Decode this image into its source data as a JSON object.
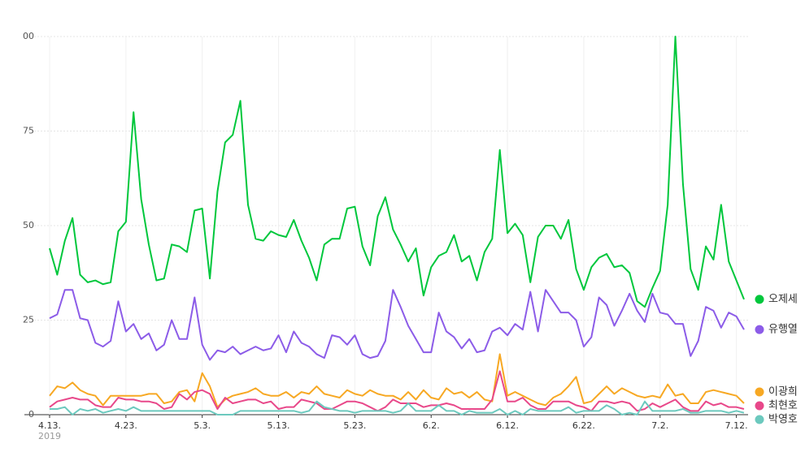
{
  "chart_data": {
    "type": "line",
    "categories": [
      "4.13.",
      null,
      null,
      null,
      null,
      null,
      null,
      null,
      null,
      null,
      "4.23.",
      null,
      null,
      null,
      null,
      null,
      null,
      null,
      null,
      null,
      "5.3.",
      null,
      null,
      null,
      null,
      null,
      null,
      null,
      null,
      null,
      "5.13.",
      null,
      null,
      null,
      null,
      null,
      null,
      null,
      null,
      null,
      "5.23.",
      null,
      null,
      null,
      null,
      null,
      null,
      null,
      null,
      null,
      "6.2.",
      null,
      null,
      null,
      null,
      null,
      null,
      null,
      null,
      null,
      "6.12.",
      null,
      null,
      null,
      null,
      null,
      null,
      null,
      null,
      null,
      "6.22.",
      null,
      null,
      null,
      null,
      null,
      null,
      null,
      null,
      null,
      "7.2.",
      null,
      null,
      null,
      null,
      null,
      null,
      null,
      null,
      null,
      "7.12.",
      null
    ],
    "x_sublabel": "2019",
    "ylim": [
      0,
      100
    ],
    "yticks": [
      0,
      25,
      50,
      75,
      {
        "value": 100,
        "label": "00"
      }
    ],
    "grid": true,
    "legend": "right",
    "series": [
      {
        "name": "오제세",
        "color": "#00c73c",
        "values": [
          44,
          37,
          46,
          52,
          37,
          35,
          35.5,
          34.5,
          35,
          48.5,
          51,
          80,
          57,
          45,
          35.5,
          36,
          45,
          44.5,
          43,
          54,
          54.5,
          36,
          59,
          72,
          74,
          83,
          55.5,
          46.5,
          46,
          48.5,
          47.5,
          47,
          51.5,
          46,
          41.5,
          35.5,
          45,
          46.5,
          46.5,
          54.5,
          55,
          44.5,
          39.5,
          52.5,
          57.5,
          49,
          45,
          40.5,
          44,
          31.5,
          39,
          42,
          43,
          47.5,
          40.5,
          42,
          35.5,
          43,
          46.5,
          70,
          48,
          50.5,
          47.5,
          35,
          47,
          50,
          50,
          46.5,
          51.5,
          38.5,
          33,
          39,
          41.5,
          42.5,
          39,
          39.5,
          37.5,
          30,
          28.5,
          33.5,
          38,
          55.5,
          100,
          61,
          38.5,
          33,
          44.5,
          41,
          55.5,
          40.5,
          35.5,
          30.5
        ]
      },
      {
        "name": "유행열",
        "color": "#8c5ce8",
        "values": [
          25.5,
          26.5,
          33,
          33,
          25.5,
          25,
          19,
          18,
          19.5,
          30,
          22,
          24,
          20,
          21.5,
          17,
          18.5,
          25,
          20,
          20,
          31,
          18.5,
          14.5,
          17,
          16.5,
          18,
          16,
          17,
          18,
          17,
          17.5,
          21,
          16.5,
          22,
          19,
          18,
          16,
          15,
          21,
          20.5,
          18.5,
          21,
          16,
          15,
          15.5,
          19.5,
          33,
          28.5,
          23.5,
          20,
          16.5,
          16.5,
          27,
          22,
          20.5,
          17.5,
          20,
          16.5,
          17,
          22,
          23,
          21,
          24,
          22.5,
          32.5,
          22,
          33,
          30,
          27,
          27,
          25,
          18,
          20.5,
          31,
          29,
          23.5,
          27.5,
          32,
          27.5,
          24.5,
          32,
          27,
          26.5,
          24,
          24,
          15.5,
          19.5,
          28.5,
          27.5,
          23,
          27,
          26,
          22.5
        ]
      },
      {
        "name": "이광희",
        "color": "#f7a823",
        "values": [
          5,
          7.5,
          7,
          8.5,
          6.5,
          5.5,
          5,
          2.5,
          5,
          5,
          5,
          5,
          5,
          5.5,
          5.5,
          3,
          3.5,
          6,
          6.5,
          3.5,
          11,
          7.5,
          2,
          4,
          5,
          5.5,
          6,
          7,
          5.5,
          5,
          5,
          6,
          4.5,
          6,
          5.5,
          7.5,
          5.5,
          5,
          4.5,
          6.5,
          5.5,
          5,
          6.5,
          5.5,
          5,
          5,
          4,
          6,
          4,
          6.5,
          4.5,
          4,
          7,
          5.5,
          6,
          4.5,
          6,
          4,
          3.5,
          16,
          5,
          6,
          5,
          4,
          3,
          2.5,
          4.5,
          5.5,
          7.5,
          10,
          3,
          3.5,
          5.5,
          7.5,
          5.5,
          7,
          6,
          5,
          4.5,
          5,
          4.5,
          8,
          5,
          5.5,
          3,
          3,
          6,
          6.5,
          6,
          5.5,
          5,
          3
        ]
      },
      {
        "name": "최현호",
        "color": "#e8488a",
        "values": [
          2,
          3.5,
          4,
          4.5,
          4,
          4,
          2.5,
          2,
          2,
          4.5,
          4,
          4,
          3.5,
          3.5,
          3,
          1.5,
          2,
          5.5,
          4,
          6,
          6.5,
          5.5,
          1.5,
          4.5,
          3,
          3.5,
          4,
          4,
          3,
          3.5,
          1.5,
          2,
          2,
          4,
          3.5,
          3,
          1.5,
          1.5,
          2.5,
          3.5,
          3.5,
          3,
          2,
          1,
          2,
          4,
          3,
          3,
          3,
          2,
          2.5,
          2.5,
          3,
          2.5,
          1.5,
          1.5,
          1.5,
          1.5,
          4,
          11.5,
          3.5,
          3.5,
          4.5,
          2.5,
          1.5,
          1.5,
          3.5,
          3.5,
          3.5,
          2.5,
          2,
          1,
          3.5,
          3.5,
          3,
          3.5,
          3,
          1,
          1.5,
          3,
          2,
          3,
          4,
          2,
          1,
          1,
          3.5,
          2.5,
          3,
          2,
          2,
          1.5
        ]
      },
      {
        "name": "박영호",
        "color": "#6cc9be",
        "values": [
          1.5,
          1.5,
          2,
          0,
          1.5,
          1,
          1.5,
          0.5,
          1,
          1.5,
          1,
          2,
          1,
          1,
          1,
          1,
          1,
          1,
          1,
          1,
          1,
          1,
          0,
          0,
          0,
          1,
          1,
          1,
          1,
          1,
          1,
          1,
          1,
          0.5,
          1,
          3.5,
          2,
          1.5,
          1,
          1,
          0.5,
          1,
          1,
          1,
          1,
          0.5,
          1,
          3,
          1,
          1,
          1,
          2.5,
          1,
          1,
          0,
          1,
          0.5,
          0.5,
          0.5,
          1.5,
          0,
          1,
          0,
          1.5,
          1,
          1,
          1,
          1,
          2,
          0.5,
          1,
          1,
          1,
          2.5,
          1.5,
          0,
          0.5,
          0,
          3.5,
          1,
          1,
          1,
          1,
          1.5,
          0.5,
          0.5,
          1,
          1,
          1,
          0.5,
          1,
          0.5
        ]
      }
    ]
  }
}
